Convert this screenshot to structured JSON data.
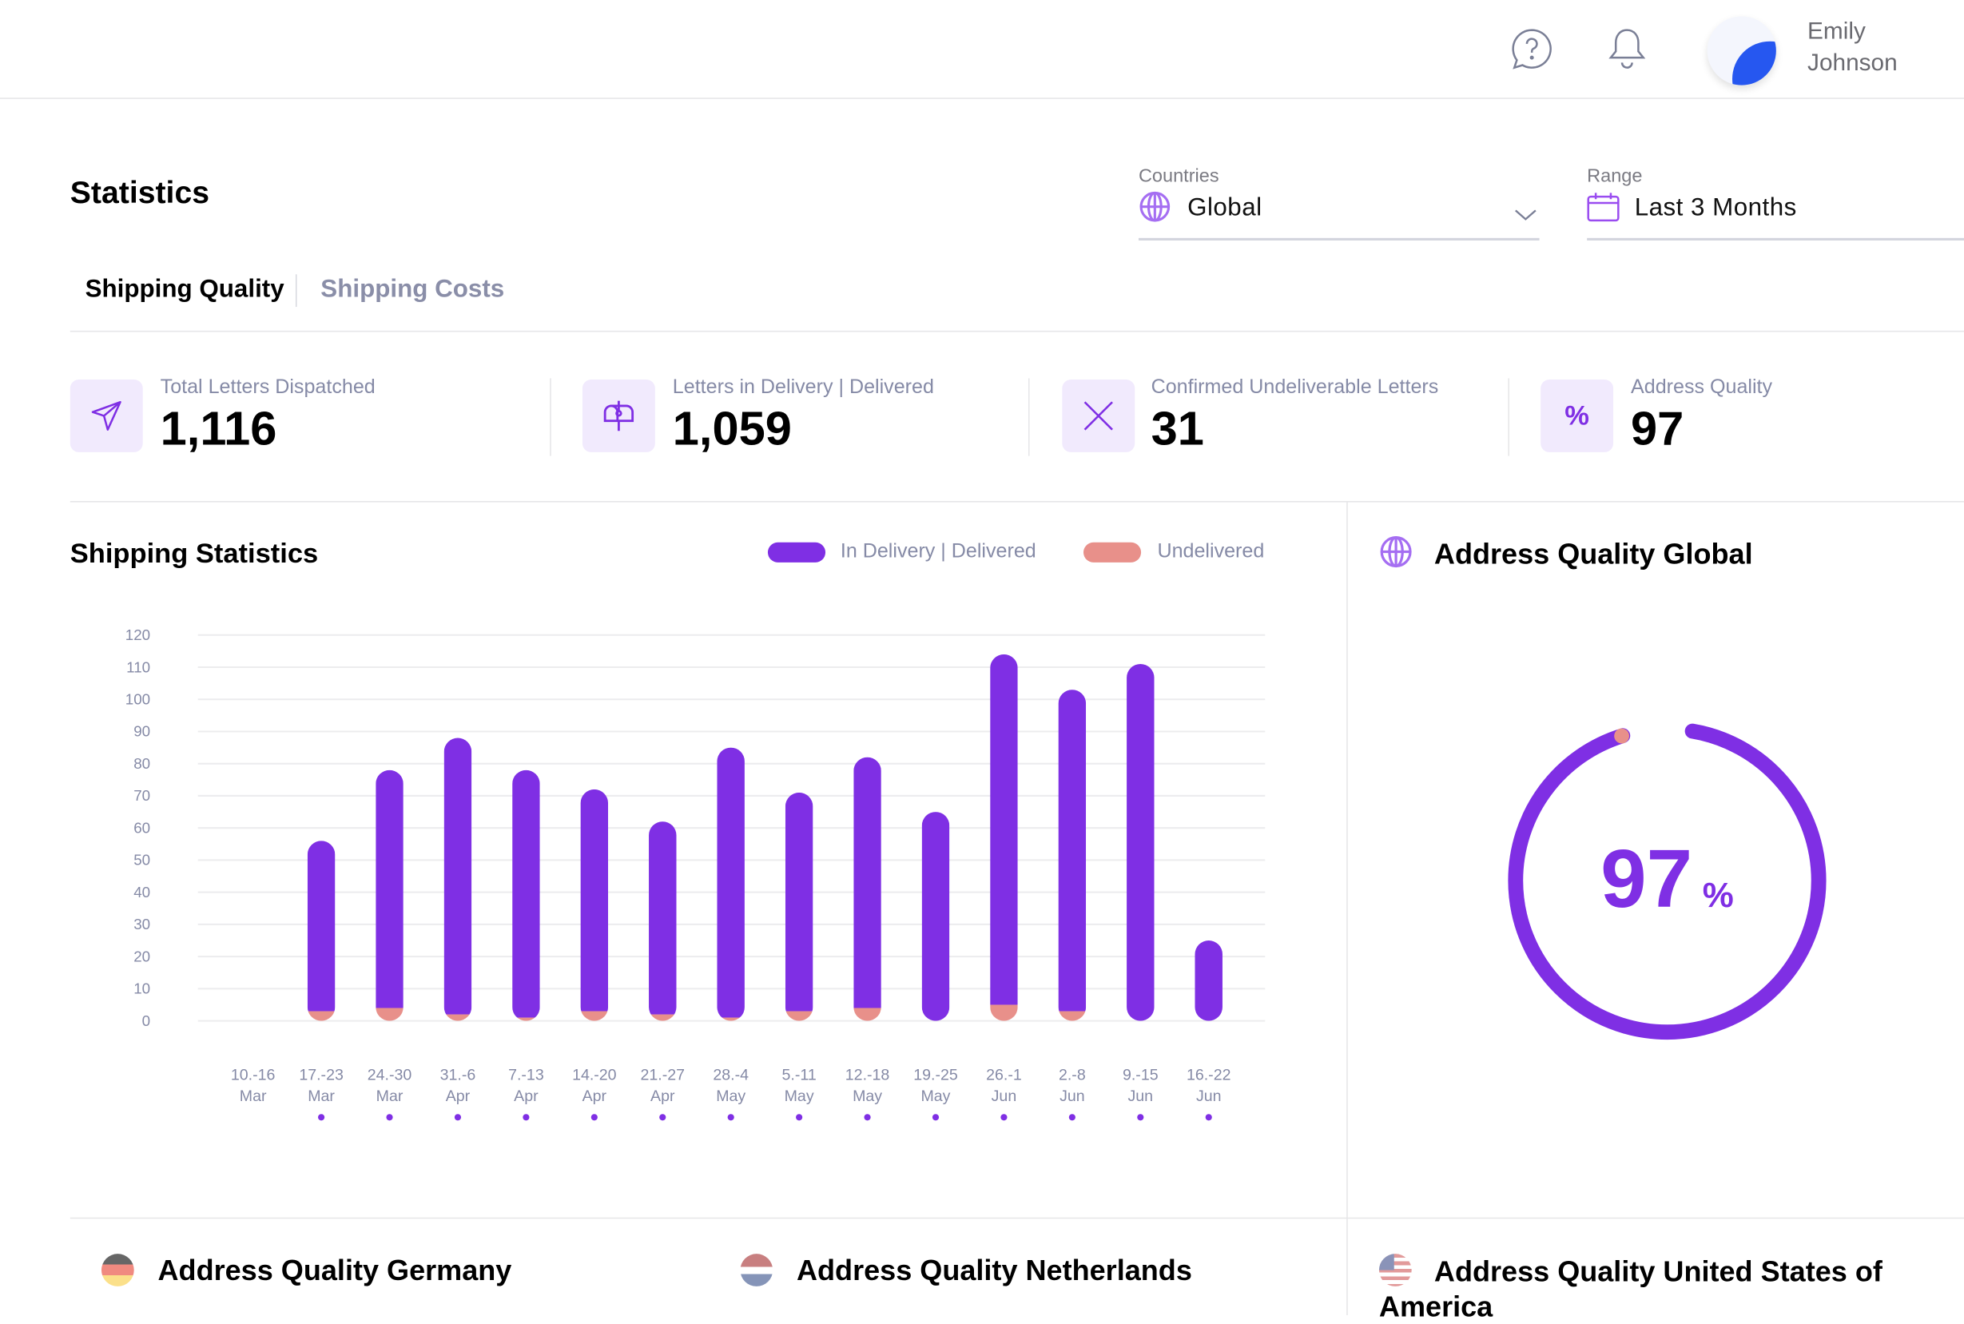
{
  "header": {
    "help_icon": "help-chat-icon",
    "bell_icon": "bell-icon",
    "user": {
      "first_name": "Emily",
      "last_name": "Johnson"
    }
  },
  "page": {
    "title": "Statistics"
  },
  "filters": {
    "countries": {
      "label": "Countries",
      "value": "Global",
      "icon": "globe-icon"
    },
    "range": {
      "label": "Range",
      "value": "Last 3 Months",
      "icon": "calendar-icon"
    }
  },
  "tabs": [
    {
      "label": "Shipping Quality",
      "active": true
    },
    {
      "label": "Shipping Costs",
      "active": false
    }
  ],
  "kpis": [
    {
      "label": "Total Letters Dispatched",
      "value": "1,116",
      "icon": "send-icon"
    },
    {
      "label": "Letters in Delivery | Delivered",
      "value": "1,059",
      "icon": "mailbox-icon"
    },
    {
      "label": "Confirmed Undeliverable Letters",
      "value": "31",
      "icon": "x-icon"
    },
    {
      "label": "Address Quality",
      "value": "97",
      "icon": "percent-icon"
    }
  ],
  "shipping_statistics": {
    "title": "Shipping Statistics",
    "legend": [
      "In Delivery | Delivered",
      "Undelivered"
    ]
  },
  "colors": {
    "delivered": "#7f2fe4",
    "undelivered": "#e8908a",
    "accent": "#7f2fe4"
  },
  "chart_data": {
    "type": "bar",
    "stacked": true,
    "categories": [
      [
        "10.-16",
        "Mar"
      ],
      [
        "17.-23",
        "Mar"
      ],
      [
        "24.-30",
        "Mar"
      ],
      [
        "31.-6",
        "Apr"
      ],
      [
        "7.-13",
        "Apr"
      ],
      [
        "14.-20",
        "Apr"
      ],
      [
        "21.-27",
        "Apr"
      ],
      [
        "28.-4",
        "May"
      ],
      [
        "5.-11",
        "May"
      ],
      [
        "12.-18",
        "May"
      ],
      [
        "19.-25",
        "May"
      ],
      [
        "26.-1",
        "Jun"
      ],
      [
        "2.-8",
        "Jun"
      ],
      [
        "9.-15",
        "Jun"
      ],
      [
        "16.-22",
        "Jun"
      ]
    ],
    "series": [
      {
        "name": "In Delivery | Delivered",
        "values": [
          0,
          53,
          74,
          86,
          77,
          69,
          60,
          84,
          68,
          78,
          65,
          109,
          100,
          111,
          25
        ]
      },
      {
        "name": "Undelivered",
        "values": [
          0,
          3,
          4,
          2,
          1,
          3,
          2,
          1,
          3,
          4,
          0,
          5,
          3,
          0,
          0
        ]
      }
    ],
    "yticks": [
      0,
      10,
      20,
      30,
      40,
      50,
      60,
      70,
      80,
      90,
      100,
      110,
      120
    ],
    "ylim": [
      0,
      120
    ],
    "grid": true,
    "legend_position": "top-right"
  },
  "address_quality_global": {
    "title": "Address Quality Global",
    "value": 97,
    "value_text": "97",
    "unit": "%"
  },
  "country_sections": [
    {
      "title": "Address Quality Germany",
      "flag": "germany-flag-icon"
    },
    {
      "title": "Address Quality Netherlands",
      "flag": "netherlands-flag-icon"
    },
    {
      "title": "Address Quality United States of America",
      "flag": "usa-flag-icon"
    }
  ]
}
